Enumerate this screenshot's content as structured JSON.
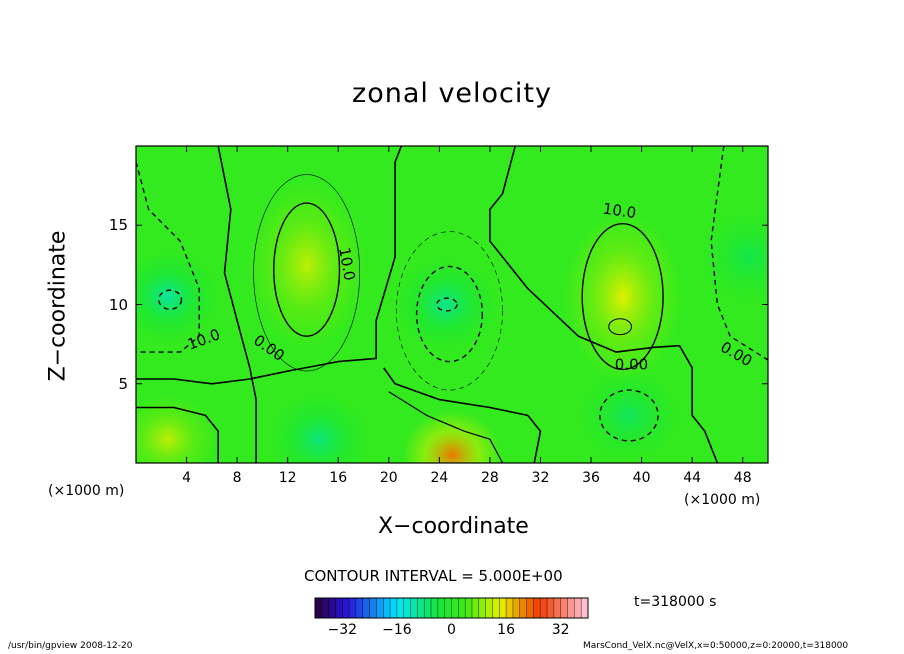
{
  "chart_data": {
    "type": "contour",
    "title": "zonal velocity",
    "xlabel": "X−coordinate",
    "ylabel": "Z−coordinate",
    "x_unit_left": "(×1000 m)",
    "x_unit_right": "(×1000 m)",
    "xlim": [
      0,
      50
    ],
    "ylim": [
      0,
      20
    ],
    "x_ticks": [
      4,
      8,
      12,
      16,
      20,
      24,
      28,
      32,
      36,
      40,
      44,
      48
    ],
    "y_ticks": [
      5,
      10,
      15
    ],
    "contour_labels": [
      "10.0",
      "10.0",
      "10.0",
      "0.00",
      "0.00",
      "0.00"
    ],
    "contour_interval": "CONTOUR INTERVAL = 5.000E+00",
    "colorbar_ticks": [
      "−32",
      "−16",
      "0",
      "16",
      "32"
    ],
    "colorbar_range": [
      -40,
      40
    ],
    "time_label": "t=318000 s",
    "footer_left": "/usr/bin/gpview   2008-12-20",
    "footer_right": "MarsCond_VelX.nc@VelX,x=0:50000,z=0:20000,t=318000",
    "field_features": [
      {
        "kind": "max",
        "x": 13.5,
        "z": 12.5,
        "value": 12
      },
      {
        "kind": "max",
        "x": 38.5,
        "z": 10.5,
        "value": 14
      },
      {
        "kind": "max",
        "x": 25,
        "z": 0.5,
        "value": 22
      },
      {
        "kind": "max",
        "x": 2.5,
        "z": 1.5,
        "value": 12
      },
      {
        "kind": "min",
        "x": 2.5,
        "z": 10.5,
        "value": -10
      },
      {
        "kind": "min",
        "x": 24.5,
        "z": 10,
        "value": -9
      },
      {
        "kind": "min",
        "x": 14.5,
        "z": 1.5,
        "value": -8
      },
      {
        "kind": "min",
        "x": 39,
        "z": 3,
        "value": -6
      },
      {
        "kind": "min",
        "x": 48.5,
        "z": 13,
        "value": -5
      }
    ]
  }
}
